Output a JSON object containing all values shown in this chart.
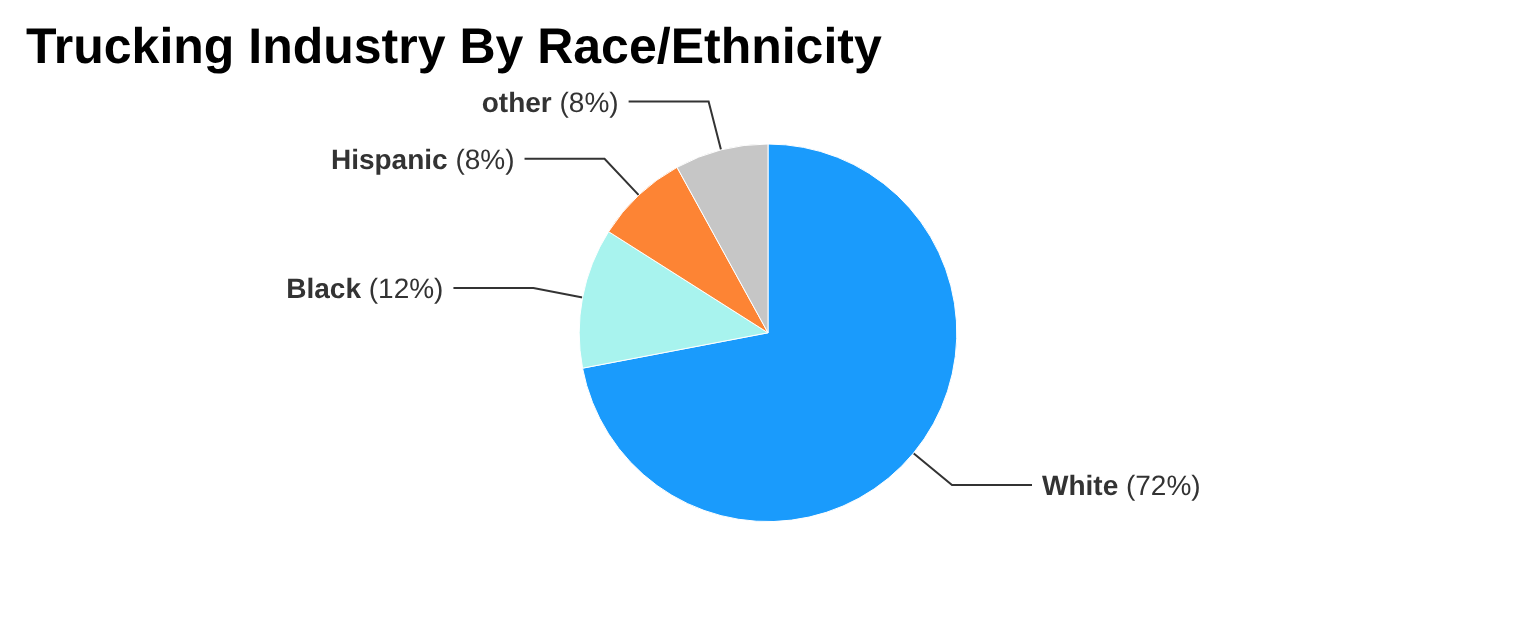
{
  "chart_data": {
    "type": "pie",
    "title": "Trucking Industry By Race/Ethnicity",
    "categories": [
      "White",
      "Black",
      "Hispanic",
      "other"
    ],
    "values": [
      72,
      12,
      8,
      8
    ],
    "value_labels": [
      "(72%)",
      "(12%)",
      "(8%)",
      "(8%)"
    ],
    "colors": [
      "#1a9bfc",
      "#a8f3ee",
      "#fd8434",
      "#c6c6c6"
    ]
  }
}
